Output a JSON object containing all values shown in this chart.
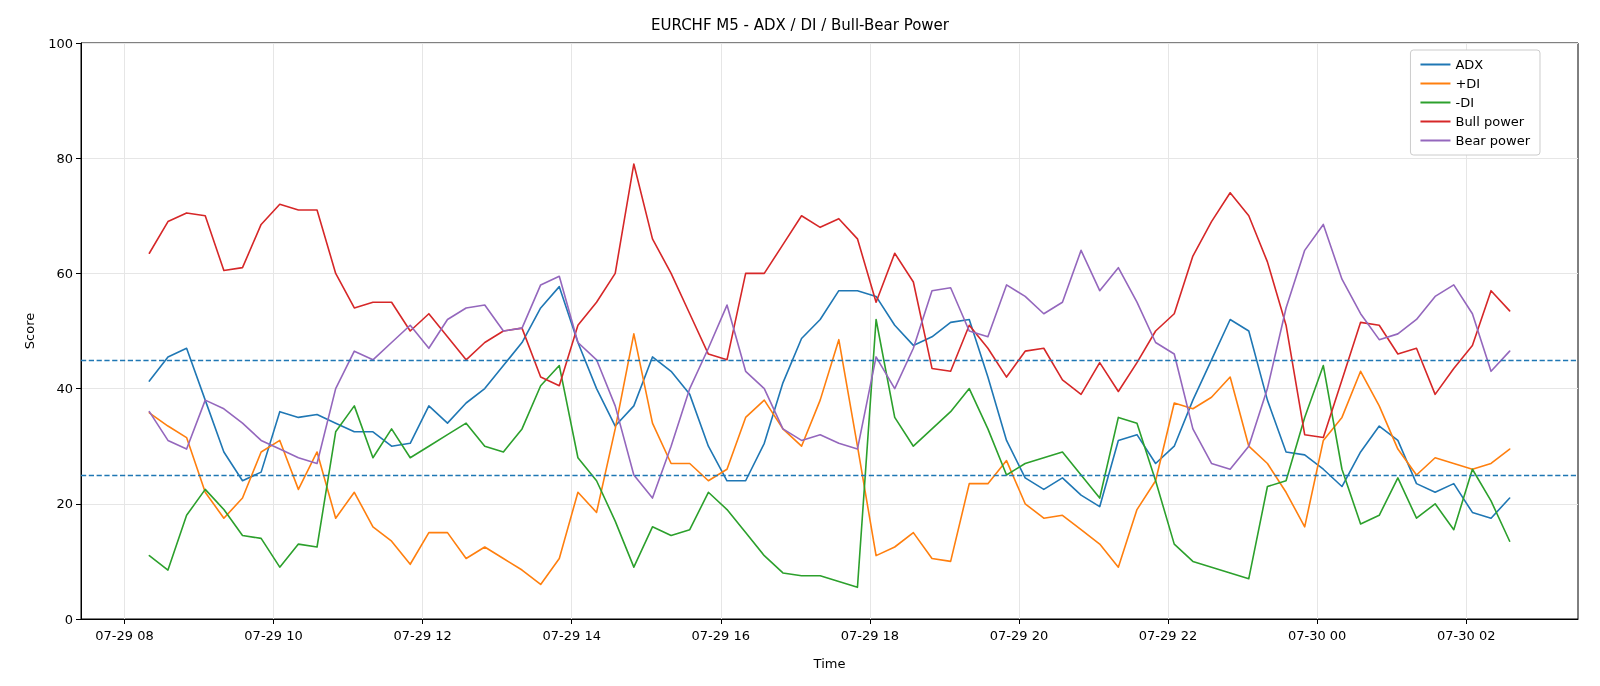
{
  "chart_data": {
    "type": "line",
    "title": "EURCHF M5 - ADX / DI / Bull-Bear Power",
    "xlabel": "Time",
    "ylabel": "Score",
    "x": [
      "--07-29T08:20",
      "--07-29T08:35",
      "--07-29T08:50",
      "--07-29T09:05",
      "--07-29T09:20",
      "--07-29T09:35",
      "--07-29T09:50",
      "--07-29T10:05",
      "--07-29T10:20",
      "--07-29T10:35",
      "--07-29T10:50",
      "--07-29T11:05",
      "--07-29T11:20",
      "--07-29T11:35",
      "--07-29T11:50",
      "--07-29T12:05",
      "--07-29T12:20",
      "--07-29T12:35",
      "--07-29T12:50",
      "--07-29T13:05",
      "--07-29T13:20",
      "--07-29T13:35",
      "--07-29T13:50",
      "--07-29T14:05",
      "--07-29T14:20",
      "--07-29T14:35",
      "--07-29T14:50",
      "--07-29T15:05",
      "--07-29T15:20",
      "--07-29T15:35",
      "--07-29T15:50",
      "--07-29T16:05",
      "--07-29T16:20",
      "--07-29T16:35",
      "--07-29T16:50",
      "--07-29T17:05",
      "--07-29T17:20",
      "--07-29T17:35",
      "--07-29T17:50",
      "--07-29T18:05",
      "--07-29T18:20",
      "--07-29T18:35",
      "--07-29T18:50",
      "--07-29T19:05",
      "--07-29T19:20",
      "--07-29T19:35",
      "--07-29T19:50",
      "--07-29T20:05",
      "--07-29T20:20",
      "--07-29T20:35",
      "--07-29T20:50",
      "--07-29T21:05",
      "--07-29T21:20",
      "--07-29T21:35",
      "--07-29T21:50",
      "--07-29T22:05",
      "--07-29T22:20",
      "--07-29T22:35",
      "--07-29T22:50",
      "--07-29T23:05",
      "--07-29T23:20",
      "--07-29T23:35",
      "--07-29T23:50",
      "--07-30T00:05",
      "--07-30T00:20",
      "--07-30T00:35",
      "--07-30T00:50",
      "--07-30T01:05",
      "--07-30T01:20",
      "--07-30T01:35",
      "--07-30T01:50",
      "--07-30T02:05",
      "--07-30T02:20",
      "--07-30T02:35"
    ],
    "series": [
      {
        "name": "ADX",
        "color": "#1f77b4",
        "values": [
          41.3,
          45.5,
          47,
          38,
          29,
          24,
          25.5,
          36,
          35,
          35.5,
          34,
          32.5,
          32.5,
          30,
          30.5,
          37,
          34,
          37.5,
          40,
          44,
          48,
          54,
          57.7,
          48,
          40,
          33.5,
          37,
          45.5,
          43,
          39,
          30,
          24,
          24,
          30.5,
          41,
          48.7,
          52,
          57,
          57,
          56,
          51,
          47.5,
          49,
          51.5,
          52,
          42,
          31,
          24.5,
          22.5,
          24.5,
          21.5,
          19.5,
          31,
          32,
          27,
          30,
          38,
          45,
          52,
          50,
          38,
          29,
          28.5,
          26,
          23,
          29,
          33.5,
          31,
          23.5,
          22,
          23.5,
          18.5,
          17.5,
          21
        ]
      },
      {
        "name": "+DI",
        "color": "#ff7f0e",
        "values": [
          35.8,
          33.5,
          31.5,
          22,
          17.5,
          21,
          29,
          31,
          22.5,
          29,
          17.5,
          22,
          16,
          13.5,
          9.5,
          15,
          15,
          10.5,
          12.5,
          10.5,
          8.5,
          6,
          10.5,
          22,
          18.5,
          33,
          49.5,
          34,
          27,
          27,
          24,
          26,
          35,
          38,
          33,
          30,
          38,
          48.5,
          30,
          11,
          12.5,
          15,
          10.5,
          10,
          23.5,
          23.5,
          27.5,
          20,
          17.5,
          18,
          15.5,
          13,
          9,
          19,
          24,
          37.5,
          36.5,
          38.5,
          42,
          30,
          27,
          22,
          16,
          31,
          35,
          43,
          37,
          29.5,
          25,
          28,
          27,
          26,
          27,
          29.5
        ]
      },
      {
        "name": "-DI",
        "color": "#2ca02c",
        "values": [
          11,
          8.5,
          18,
          22.5,
          19,
          14.5,
          14,
          9,
          13,
          12.5,
          32.5,
          37,
          28,
          33,
          28,
          30,
          32,
          34,
          30,
          29,
          33,
          40.5,
          44,
          28,
          24,
          17,
          9,
          16,
          14.5,
          15.5,
          22,
          19,
          15,
          11,
          8,
          7.5,
          7.5,
          6.5,
          5.5,
          52,
          35,
          30,
          33,
          36,
          40,
          33,
          25,
          27,
          28,
          29,
          25,
          21,
          35,
          34,
          24,
          13,
          10,
          9,
          8,
          7,
          23,
          24,
          35,
          44,
          26,
          16.5,
          18,
          24.5,
          17.5,
          20,
          15.5,
          26,
          20.5,
          13.5
        ]
      },
      {
        "name": "Bull power",
        "color": "#d62728",
        "values": [
          63.5,
          69,
          70.5,
          70,
          60.5,
          61,
          68.5,
          72,
          71,
          71,
          60,
          54,
          55,
          55,
          50,
          53,
          49,
          45,
          48,
          50,
          50.5,
          42,
          40.5,
          51,
          55,
          60,
          79,
          66,
          60,
          53,
          46,
          45,
          60,
          60,
          65,
          70,
          68,
          69.5,
          66,
          55,
          63.5,
          58.5,
          43.5,
          43,
          51,
          47,
          42,
          46.5,
          47,
          41.5,
          39,
          44.5,
          39.5,
          44.5,
          50,
          53,
          63,
          69,
          74,
          70,
          62,
          51,
          32,
          31.5,
          41.5,
          51.5,
          51,
          46,
          47,
          39,
          43.5,
          47.5,
          57,
          53.5
        ]
      },
      {
        "name": "Bear power",
        "color": "#9467bd",
        "values": [
          36,
          31,
          29.5,
          38,
          36.5,
          34,
          31,
          29.5,
          28,
          27,
          40,
          46.5,
          45,
          48,
          51,
          47,
          52,
          54,
          54.5,
          50,
          50.5,
          58,
          59.5,
          48,
          45,
          37,
          25,
          21,
          30,
          40,
          47,
          54.5,
          43,
          40,
          33,
          31,
          32,
          30.5,
          29.5,
          45.5,
          40,
          47,
          57,
          57.5,
          50,
          49,
          58,
          56,
          53,
          55,
          64,
          57,
          61,
          55,
          48,
          46,
          33,
          27,
          26,
          30,
          40,
          54,
          64,
          68.5,
          59,
          53,
          48.5,
          49.5,
          52,
          56,
          58,
          53,
          43,
          46.5
        ]
      }
    ],
    "xlim": [
      "--07-29T07:25",
      "--07-30T03:30"
    ],
    "xticks": [
      {
        "value": "--07-29T08:00",
        "label": "07-29 08"
      },
      {
        "value": "--07-29T10:00",
        "label": "07-29 10"
      },
      {
        "value": "--07-29T12:00",
        "label": "07-29 12"
      },
      {
        "value": "--07-29T14:00",
        "label": "07-29 14"
      },
      {
        "value": "--07-29T16:00",
        "label": "07-29 16"
      },
      {
        "value": "--07-29T18:00",
        "label": "07-29 18"
      },
      {
        "value": "--07-29T20:00",
        "label": "07-29 20"
      },
      {
        "value": "--07-29T22:00",
        "label": "07-29 22"
      },
      {
        "value": "--07-30T00:00",
        "label": "07-30 00"
      },
      {
        "value": "--07-30T02:00",
        "label": "07-30 02"
      }
    ],
    "ylim": [
      0,
      100
    ],
    "yticks": [
      0,
      20,
      40,
      60,
      80,
      100
    ],
    "ref_lines": [
      {
        "axis": "y",
        "value": 45,
        "color": "#1f77b4",
        "line_style": "dashed"
      },
      {
        "axis": "y",
        "value": 25,
        "color": "#1f77b4",
        "line_style": "dashed"
      }
    ],
    "grid": true,
    "legend": "top right",
    "marker": "none",
    "line_style": "solid"
  }
}
